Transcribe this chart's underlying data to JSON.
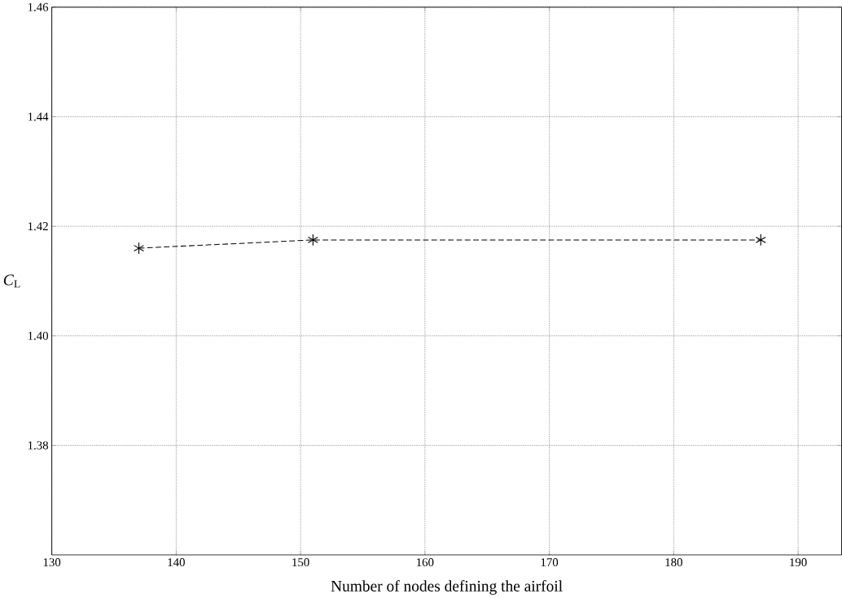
{
  "chart_data": {
    "type": "line",
    "xlabel": "Number of nodes defining the airfoil",
    "ylabel": "*C*$_{L}$",
    "x": [
      137,
      151,
      187
    ],
    "series": [
      {
        "color": "#000000",
        "values": [
          1.416,
          1.4175,
          1.4175
        ]
      }
    ],
    "xlim": [
      130,
      193.5
    ],
    "ylim": [
      1.36,
      1.46
    ],
    "xticks": [
      130,
      140,
      150,
      160,
      170,
      180,
      190
    ],
    "yticks": [
      {
        "value": 1.38,
        "label": "1.38"
      },
      {
        "value": 1.4,
        "label": "1.40"
      },
      {
        "value": 1.42,
        "label": "1.42"
      },
      {
        "value": 1.44,
        "label": "1.44"
      },
      {
        "value": 1.46,
        "label": "1.46"
      }
    ],
    "grid": true,
    "marker": "cross",
    "line_style": "dashed"
  }
}
